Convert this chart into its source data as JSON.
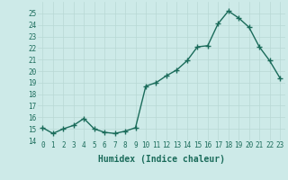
{
  "x": [
    0,
    1,
    2,
    3,
    4,
    5,
    6,
    7,
    8,
    9,
    10,
    11,
    12,
    13,
    14,
    15,
    16,
    17,
    18,
    19,
    20,
    21,
    22,
    23
  ],
  "y": [
    15.1,
    14.6,
    15.0,
    15.3,
    15.9,
    15.0,
    14.7,
    14.6,
    14.8,
    15.1,
    18.7,
    19.0,
    19.6,
    20.1,
    20.9,
    22.1,
    22.2,
    24.1,
    25.2,
    24.6,
    23.8,
    22.1,
    20.9,
    19.4
  ],
  "line_color": "#1a6b5a",
  "marker": "+",
  "markersize": 4,
  "linewidth": 1.0,
  "bg_color": "#cdeae8",
  "grid_color": "#b8d8d4",
  "xlabel": "Humidex (Indice chaleur)",
  "xlabel_fontsize": 7,
  "xlim": [
    -0.5,
    23.5
  ],
  "ylim": [
    14,
    26
  ],
  "yticks": [
    14,
    15,
    16,
    17,
    18,
    19,
    20,
    21,
    22,
    23,
    24,
    25
  ],
  "xticks": [
    0,
    1,
    2,
    3,
    4,
    5,
    6,
    7,
    8,
    9,
    10,
    11,
    12,
    13,
    14,
    15,
    16,
    17,
    18,
    19,
    20,
    21,
    22,
    23
  ],
  "tick_fontsize": 5.5
}
